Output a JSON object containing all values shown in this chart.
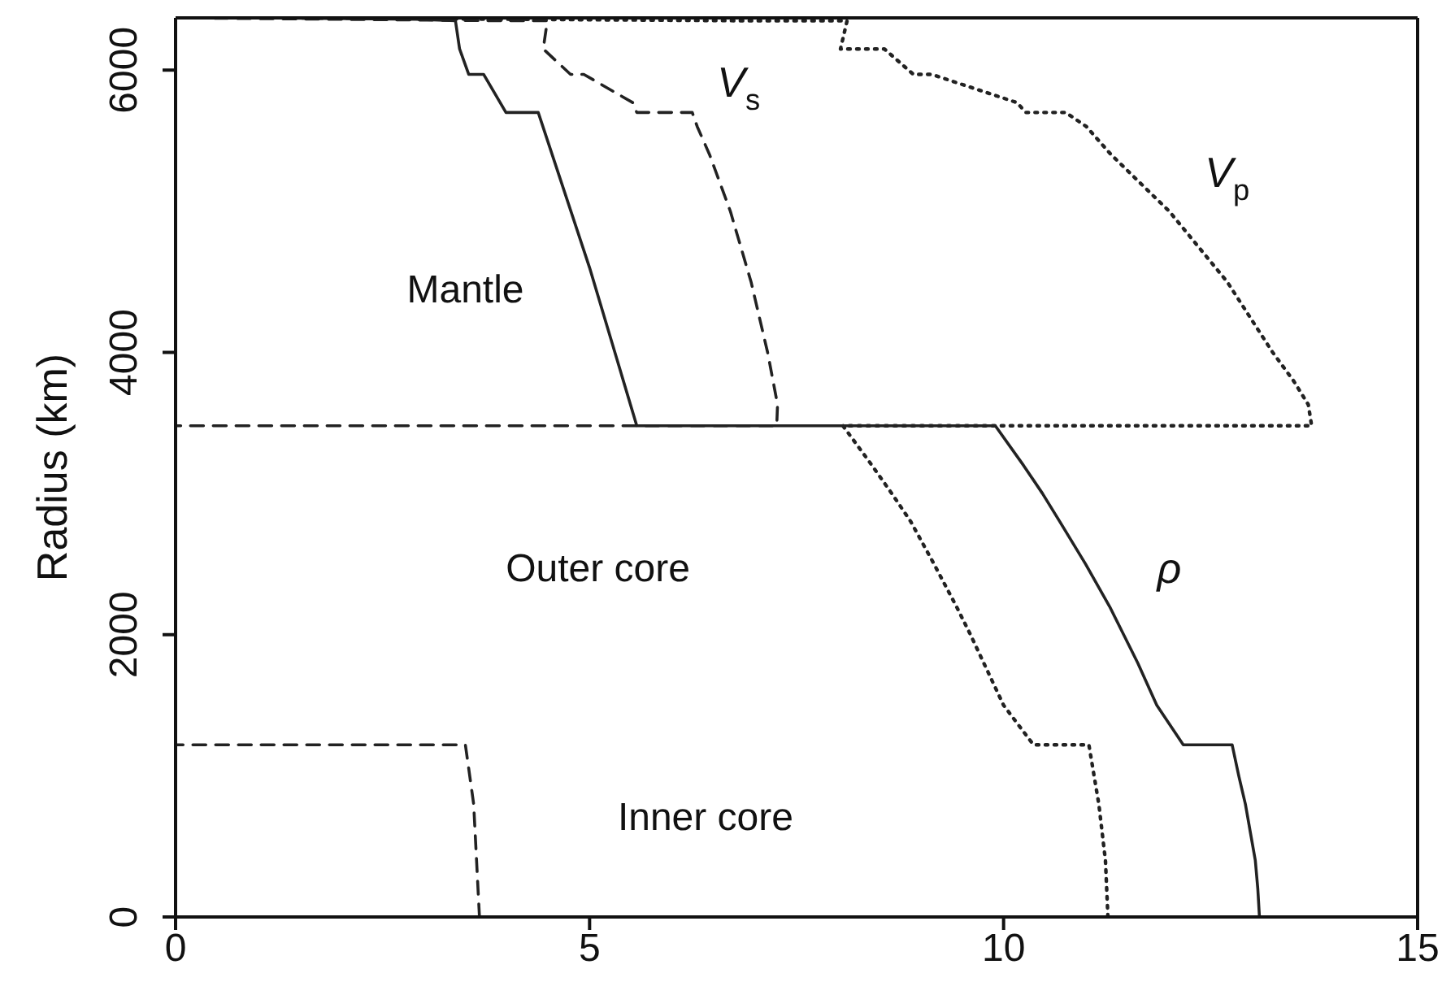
{
  "chart_data": {
    "type": "line",
    "ylabel": "Radius (km)",
    "xlim": [
      0,
      15
    ],
    "xticks": [
      0,
      5,
      10,
      15
    ],
    "ylim": [
      0,
      6370
    ],
    "yticks": [
      0,
      2000,
      4000,
      6000
    ],
    "marker": "none",
    "annotations": [
      "Mantle",
      "Outer core",
      "Inner core"
    ],
    "series": [
      {
        "name": "ρ",
        "color": "#222222",
        "line_style": "solid",
        "x": [
          13.09,
          13.07,
          13.04,
          12.98,
          12.92,
          12.84,
          12.76,
          12.17,
          11.85,
          11.62,
          11.45,
          11.28,
          10.99,
          10.68,
          10.47,
          10.24,
          9.9,
          5.57,
          5.0,
          4.38,
          3.99,
          3.72,
          3.54,
          3.43,
          3.38,
          3.38,
          2.9,
          1.02
        ],
        "values": [
          0,
          200,
          400,
          600,
          800,
          1000,
          1220,
          1220,
          1500,
          1800,
          2000,
          2200,
          2500,
          2800,
          3000,
          3200,
          3480,
          3480,
          4600,
          5700,
          5700,
          5970,
          5970,
          6150,
          6350,
          6350,
          6360,
          6370
        ]
      },
      {
        "name": "V$_{s}$",
        "color": "#222222",
        "line_style": "dashed",
        "x": [
          3.67,
          3.6,
          3.5,
          0,
          0,
          7.26,
          7.27,
          7.15,
          6.95,
          6.7,
          6.45,
          6.3,
          6.24,
          5.57,
          5.52,
          4.93,
          4.77,
          4.44,
          4.49,
          3.9,
          0
        ],
        "values": [
          0,
          800,
          1220,
          1220,
          3480,
          3480,
          3630,
          4000,
          4500,
          5000,
          5400,
          5600,
          5700,
          5700,
          5770,
          5970,
          5970,
          6150,
          6350,
          6350,
          6370
        ]
      },
      {
        "name": "V$_{p}$",
        "color": "#222222",
        "line_style": "dotted",
        "x": [
          11.26,
          11.23,
          11.15,
          11.03,
          10.36,
          10.0,
          9.76,
          9.6,
          9.43,
          9.16,
          8.88,
          8.65,
          8.41,
          8.06,
          13.72,
          13.68,
          13.5,
          13.25,
          12.7,
          12.0,
          11.3,
          11.0,
          10.75,
          10.27,
          10.16,
          9.13,
          8.91,
          8.56,
          8.03,
          8.11,
          6.8,
          1.45
        ],
        "values": [
          0,
          400,
          800,
          1220,
          1220,
          1500,
          1800,
          2000,
          2200,
          2500,
          2800,
          3000,
          3200,
          3480,
          3480,
          3630,
          3800,
          4000,
          4500,
          5000,
          5400,
          5600,
          5700,
          5700,
          5770,
          5970,
          5970,
          6150,
          6150,
          6350,
          6350,
          6370
        ]
      }
    ]
  }
}
